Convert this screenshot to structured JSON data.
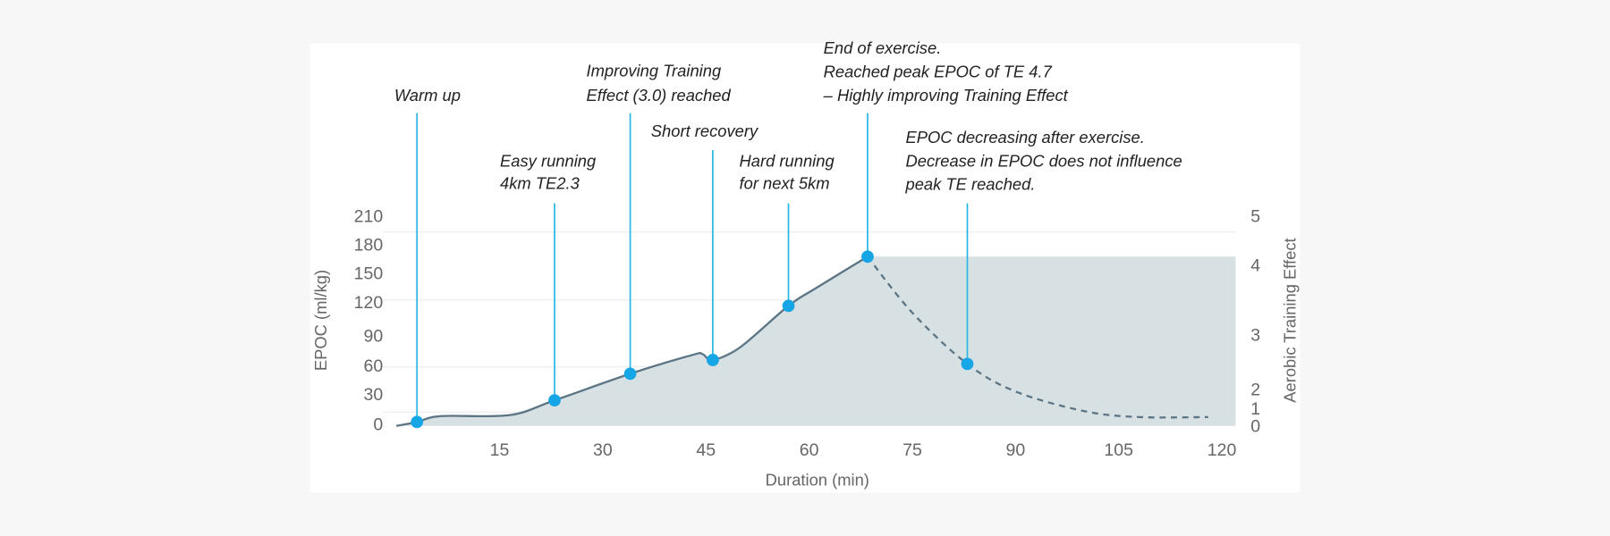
{
  "chart_data": {
    "type": "area",
    "xlabel": "Duration (min)",
    "ylabel": "EPOC (ml/kg)",
    "y2label": "Aerobic Training Effect",
    "xlim": [
      0,
      122
    ],
    "ylim": [
      0,
      210
    ],
    "x_ticks": [
      "15",
      "30",
      "45",
      "60",
      "75",
      "90",
      "105",
      "120"
    ],
    "y_ticks": [
      "0",
      "30",
      "60",
      "90",
      "120",
      "150",
      "180",
      "210"
    ],
    "y2_ticks": [
      "0",
      "1",
      "2",
      "3",
      "4",
      "5"
    ],
    "grid": true,
    "series": [
      {
        "style": "solid",
        "x": [
          0,
          3,
          6.5,
          16.5,
          23,
          34,
          43,
          44.5,
          46,
          50,
          57,
          61,
          68.5
        ],
        "y": [
          0,
          4,
          10,
          11,
          26,
          53,
          72,
          73,
          67,
          80,
          122,
          140,
          172
        ]
      },
      {
        "style": "dashed",
        "x": [
          68.5,
          75,
          83,
          90,
          100,
          108,
          118
        ],
        "y": [
          172,
          115,
          63,
          35,
          15,
          9,
          9
        ]
      }
    ],
    "peak_fill_level": 172,
    "annotations": [
      {
        "x": 3,
        "y": 4,
        "lines": [
          "Warm up"
        ]
      },
      {
        "x": 23,
        "y": 26,
        "lines": [
          "Easy running",
          "4km TE2.3"
        ]
      },
      {
        "x": 34,
        "y": 53,
        "lines": [
          "Improving Training",
          "Effect (3.0) reached"
        ]
      },
      {
        "x": 46,
        "y": 67,
        "lines": [
          "Short recovery"
        ]
      },
      {
        "x": 57,
        "y": 122,
        "lines": [
          "Hard running",
          "for next 5km"
        ]
      },
      {
        "x": 68.5,
        "y": 172,
        "lines": [
          "End of exercise.",
          "Reached peak EPOC of TE 4.7",
          "– Highly improving Training Effect"
        ]
      },
      {
        "x": 83,
        "y": 63,
        "lines": [
          "EPOC decreasing after exercise.",
          "Decrease in EPOC does not influence",
          "peak TE reached."
        ]
      }
    ],
    "colors": {
      "line": "#5b7585",
      "fill": "#d7e0e3",
      "marker": "#16a6e6",
      "leader": "#2bb7e2"
    }
  }
}
